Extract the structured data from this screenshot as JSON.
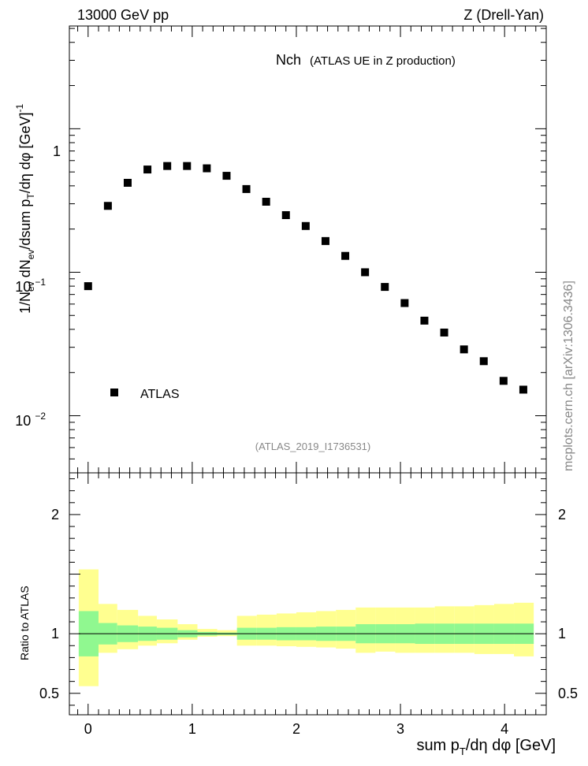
{
  "header": {
    "left": "13000 GeV pp",
    "right": "Z (Drell-Yan)"
  },
  "colors": {
    "data_marker": "#000000",
    "band_inner": "#90f890",
    "band_outer": "#ffff90",
    "label_gray": "#888888"
  },
  "chart_data": [
    {
      "type": "scatter",
      "title": "Nch",
      "subtitle": "(ATLAS UE in Z production)",
      "ylabel": "1/N_ev dN_ev/dsum p_T/dη dφ [GeV]^-1",
      "ylabel_parts": {
        "a": "1/N",
        "a_sub": "ev",
        "b": " dN",
        "b_sub": "ev",
        "c": "/dsum p",
        "c_sub": "T",
        "d": "/dη dφ  [GeV]",
        "d_sup": "-1"
      },
      "yscale": "log",
      "ylim": [
        0.004,
        5.2
      ],
      "xlim": [
        -0.18,
        4.4
      ],
      "ytick_labels": [
        {
          "value": 1,
          "base": "1",
          "exp": ""
        },
        {
          "value": 0.1,
          "base": "10",
          "exp": "−1"
        },
        {
          "value": 0.01,
          "base": "10",
          "exp": "−2"
        }
      ],
      "legend": {
        "label": "ATLAS",
        "position": "lower-left"
      },
      "annotation": "(ATLAS_2019_I1736531)",
      "side_label": "mcplots.cern.ch [arXiv:1306.3436]",
      "series": [
        {
          "name": "ATLAS",
          "x": [
            0.0,
            0.19,
            0.38,
            0.57,
            0.76,
            0.95,
            1.14,
            1.33,
            1.52,
            1.71,
            1.9,
            2.09,
            2.28,
            2.47,
            2.66,
            2.85,
            3.04,
            3.23,
            3.42,
            3.61,
            3.8,
            3.99,
            4.18
          ],
          "y": [
            0.08,
            0.29,
            0.42,
            0.52,
            0.55,
            0.55,
            0.53,
            0.47,
            0.38,
            0.31,
            0.25,
            0.21,
            0.165,
            0.13,
            0.1,
            0.079,
            0.061,
            0.046,
            0.038,
            0.029,
            0.024,
            0.0175,
            0.0152
          ]
        }
      ]
    },
    {
      "type": "area",
      "ylabel": "Ratio to ATLAS",
      "xlabel": "sum p_T/dη dφ [GeV]",
      "xlabel_parts": {
        "a": "sum p",
        "a_sub": "T",
        "b": "/dη dφ [GeV]"
      },
      "xlim": [
        -0.18,
        4.4
      ],
      "ylim": [
        0.32,
        2.35
      ],
      "yticks": [
        0.5,
        1,
        2
      ],
      "ytick_labels": [
        "0.5",
        "1",
        "2"
      ],
      "xticks": [
        0,
        1,
        2,
        3,
        4
      ],
      "xtick_labels": [
        "0",
        "1",
        "2",
        "3",
        "4"
      ],
      "reference_line": 1,
      "bins": {
        "edges": [
          -0.09,
          0.1,
          0.28,
          0.48,
          0.66,
          0.86,
          1.05,
          1.24,
          1.43,
          1.62,
          1.81,
          2.0,
          2.19,
          2.38,
          2.57,
          2.76,
          2.95,
          3.14,
          3.33,
          3.52,
          3.71,
          3.9,
          4.09,
          4.28
        ],
        "inner_low": [
          0.81,
          0.91,
          0.93,
          0.94,
          0.95,
          0.97,
          0.985,
          0.99,
          0.95,
          0.95,
          0.945,
          0.945,
          0.94,
          0.94,
          0.92,
          0.92,
          0.92,
          0.915,
          0.915,
          0.915,
          0.915,
          0.915,
          0.915
        ],
        "inner_high": [
          1.19,
          1.09,
          1.07,
          1.06,
          1.05,
          1.03,
          1.015,
          1.01,
          1.05,
          1.05,
          1.055,
          1.055,
          1.06,
          1.06,
          1.08,
          1.08,
          1.08,
          1.085,
          1.085,
          1.085,
          1.085,
          1.085,
          1.085
        ],
        "outer_low": [
          0.56,
          0.84,
          0.87,
          0.9,
          0.92,
          0.95,
          0.975,
          0.98,
          0.9,
          0.9,
          0.895,
          0.89,
          0.885,
          0.875,
          0.84,
          0.85,
          0.84,
          0.84,
          0.84,
          0.84,
          0.83,
          0.83,
          0.81
        ],
        "outer_high": [
          1.54,
          1.25,
          1.2,
          1.15,
          1.12,
          1.08,
          1.04,
          1.03,
          1.15,
          1.16,
          1.17,
          1.18,
          1.19,
          1.2,
          1.22,
          1.22,
          1.22,
          1.22,
          1.23,
          1.23,
          1.24,
          1.25,
          1.26
        ]
      }
    }
  ]
}
